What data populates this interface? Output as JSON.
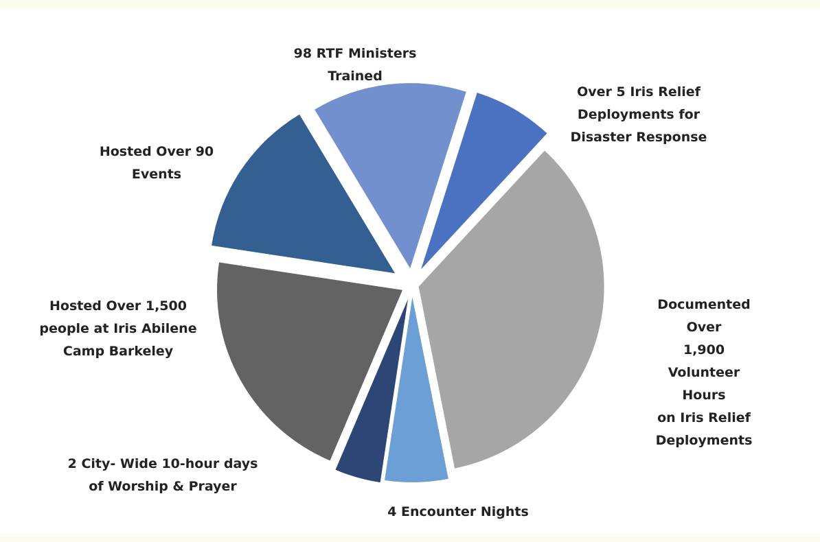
{
  "chart_data": {
    "type": "pie",
    "categories": [
      "98 RTF Ministers\nTrained",
      "Over 5 Iris Relief\nDeployments for\nDisaster Response",
      "Documented Over\n1,900 Volunteer Hours\non Iris Relief\nDeployments",
      "4 Encounter Nights",
      "2 City- Wide 10-hour days\nof Worship & Prayer",
      "Hosted Over 1,500\npeople at Iris Abilene\nCamp Barkeley",
      "Hosted Over 90\nEvents"
    ],
    "values": [
      13.5,
      7,
      35,
      5.5,
      4,
      21,
      14
    ],
    "colors": [
      "#7190cd",
      "#4a72c0",
      "#a6a6a6",
      "#6b9fd5",
      "#2d4676",
      "#636363",
      "#345f91"
    ]
  }
}
